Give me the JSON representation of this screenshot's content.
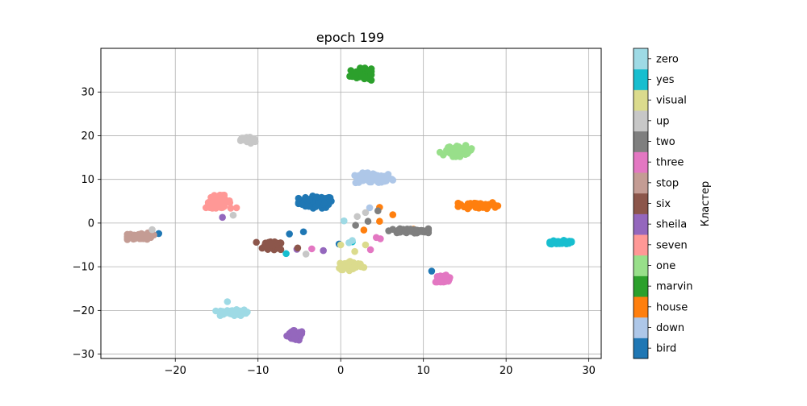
{
  "chart_data": {
    "type": "scatter",
    "title": "epoch 199",
    "xlabel": "",
    "ylabel": "",
    "xlim": [
      -29,
      31.5
    ],
    "ylim": [
      -31,
      40
    ],
    "xticks": [
      -20,
      -10,
      0,
      10,
      20,
      30
    ],
    "yticks": [
      -30,
      -20,
      -10,
      0,
      10,
      20,
      30
    ],
    "xtick_labels": [
      "−20",
      "−10",
      "0",
      "10",
      "20",
      "30"
    ],
    "ytick_labels": [
      "−30",
      "−20",
      "−10",
      "0",
      "10",
      "20",
      "30"
    ],
    "grid": true,
    "colorbar": {
      "label": "Кластер",
      "placement": "right",
      "labels_bottom_to_top": [
        "bird",
        "down",
        "house",
        "marvin",
        "one",
        "seven",
        "sheila",
        "six",
        "stop",
        "three",
        "two",
        "up",
        "visual",
        "yes",
        "zero"
      ]
    },
    "series": [
      {
        "name": "bird",
        "color": "#1f77b4",
        "clusters": [
          {
            "center": [
              -3.0,
              4.8
            ],
            "spread": [
              2.1,
              1.4
            ],
            "n": 70
          }
        ],
        "outliers": [
          [
            -4.5,
            -2.0
          ],
          [
            -6.2,
            -2.5
          ],
          [
            -0.2,
            -4.8
          ],
          [
            11.0,
            -11.0
          ],
          [
            -22.0,
            -2.4
          ]
        ]
      },
      {
        "name": "down",
        "color": "#aec7e8",
        "clusters": [
          {
            "center": [
              4.0,
              10.2
            ],
            "spread": [
              2.3,
              1.3
            ],
            "n": 60
          }
        ],
        "outliers": [
          [
            3.5,
            3.5
          ]
        ]
      },
      {
        "name": "house",
        "color": "#ff7f0e",
        "clusters": [
          {
            "center": [
              16.6,
              4.1
            ],
            "spread": [
              2.4,
              0.8
            ],
            "n": 60
          }
        ],
        "outliers": [
          [
            4.7,
            3.6
          ],
          [
            6.3,
            1.9
          ],
          [
            4.7,
            0.4
          ],
          [
            8.8,
            -1.4
          ],
          [
            2.8,
            -1.6
          ]
        ]
      },
      {
        "name": "marvin",
        "color": "#2ca02c",
        "clusters": [
          {
            "center": [
              2.4,
              34.1
            ],
            "spread": [
              1.3,
              1.4
            ],
            "n": 50
          }
        ],
        "outliers": []
      },
      {
        "name": "one",
        "color": "#98df8a",
        "clusters": [
          {
            "center": [
              14.4,
              16.5
            ],
            "spread": [
              1.6,
              1.3
            ],
            "n": 45
          }
        ],
        "outliers": [
          [
            12.4,
            15.6
          ],
          [
            12.0,
            16.2
          ]
        ]
      },
      {
        "name": "seven",
        "color": "#ff9896",
        "clusters": [
          {
            "center": [
              -14.8,
              4.9
            ],
            "spread": [
              1.5,
              1.5
            ],
            "n": 55
          }
        ],
        "outliers": [
          [
            -12.6,
            3.5
          ]
        ]
      },
      {
        "name": "sheila",
        "color": "#9467bd",
        "clusters": [
          {
            "center": [
              -5.5,
              -25.8
            ],
            "spread": [
              1.0,
              1.2
            ],
            "n": 55
          }
        ],
        "outliers": [
          [
            -14.3,
            1.3
          ],
          [
            -5.3,
            -6.0
          ],
          [
            -2.1,
            -6.3
          ]
        ]
      },
      {
        "name": "six",
        "color": "#8c564b",
        "clusters": [
          {
            "center": [
              -8.2,
              -5.3
            ],
            "spread": [
              1.3,
              1.0
            ],
            "n": 45
          }
        ],
        "outliers": [
          [
            -5.2,
            -5.7
          ],
          [
            -10.2,
            -4.4
          ]
        ]
      },
      {
        "name": "stop",
        "color": "#c49c94",
        "clusters": [
          {
            "center": [
              -24.2,
              -3.0
            ],
            "spread": [
              1.6,
              0.8
            ],
            "n": 50
          }
        ],
        "outliers": []
      },
      {
        "name": "three",
        "color": "#e377c2",
        "clusters": [
          {
            "center": [
              12.4,
              -12.7
            ],
            "spread": [
              1.1,
              0.8
            ],
            "n": 35
          }
        ],
        "outliers": [
          [
            3.6,
            -6.1
          ],
          [
            4.3,
            -3.3
          ],
          [
            4.8,
            -3.6
          ],
          [
            -3.5,
            -5.9
          ]
        ]
      },
      {
        "name": "two",
        "color": "#7f7f7f",
        "clusters": [
          {
            "center": [
              8.2,
              -1.8
            ],
            "spread": [
              2.4,
              0.5
            ],
            "n": 60
          }
        ],
        "outliers": [
          [
            3.3,
            0.4
          ],
          [
            4.5,
            2.8
          ],
          [
            1.8,
            -0.5
          ]
        ]
      },
      {
        "name": "up",
        "color": "#c7c7c7",
        "clusters": [
          {
            "center": [
              -11.2,
              19.0
            ],
            "spread": [
              0.9,
              0.8
            ],
            "n": 40
          }
        ],
        "outliers": [
          [
            -13.0,
            1.8
          ],
          [
            -22.8,
            -1.5
          ],
          [
            -4.2,
            -7.1
          ],
          [
            3.0,
            2.4
          ],
          [
            2.0,
            1.5
          ]
        ]
      },
      {
        "name": "visual",
        "color": "#dbdb8d",
        "clusters": [
          {
            "center": [
              1.2,
              -9.8
            ],
            "spread": [
              1.6,
              1.1
            ],
            "n": 50
          }
        ],
        "outliers": [
          [
            3.0,
            -5.0
          ],
          [
            1.7,
            -6.5
          ],
          [
            0.0,
            -5.0
          ]
        ]
      },
      {
        "name": "yes",
        "color": "#17becf",
        "clusters": [
          {
            "center": [
              26.6,
              -4.4
            ],
            "spread": [
              1.3,
              0.5
            ],
            "n": 40
          }
        ],
        "outliers": [
          [
            -6.6,
            -7.0
          ],
          [
            1.4,
            -4.3
          ]
        ]
      },
      {
        "name": "zero",
        "color": "#9edae5",
        "clusters": [
          {
            "center": [
              -13.2,
              -20.5
            ],
            "spread": [
              1.9,
              0.7
            ],
            "n": 50
          }
        ],
        "outliers": [
          [
            -13.7,
            -18.0
          ],
          [
            0.4,
            0.5
          ],
          [
            1.0,
            -4.5
          ],
          [
            1.4,
            -4.0
          ]
        ]
      }
    ]
  }
}
